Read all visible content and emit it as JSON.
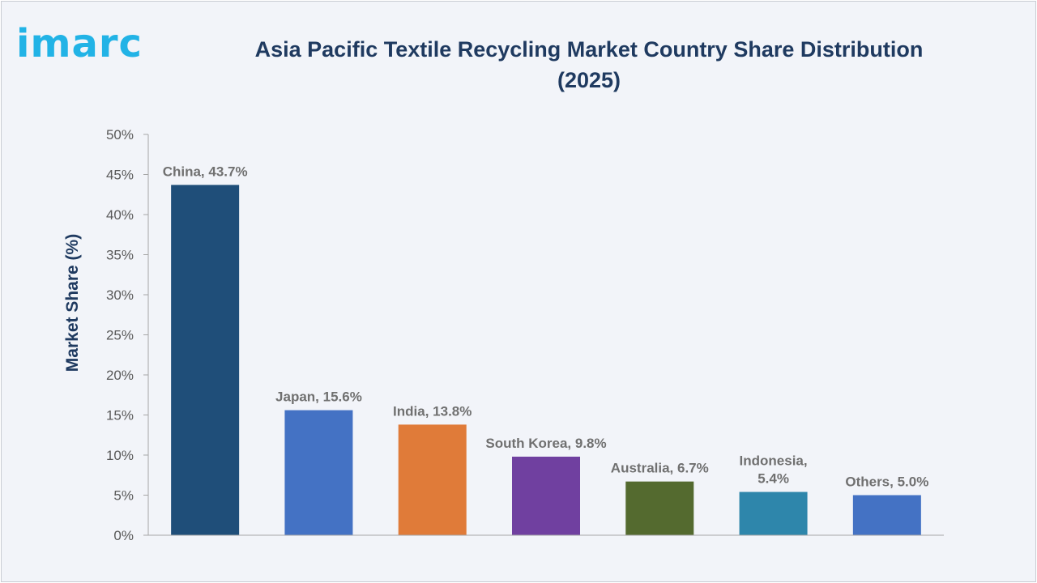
{
  "logo_text": "imarc",
  "chart_data": {
    "type": "bar",
    "title": "Asia Pacific Textile Recycling Market Country Share Distribution (2025)",
    "xlabel": "",
    "ylabel": "Market Share (%)",
    "ylim": [
      0,
      50
    ],
    "yticks": [
      0,
      5,
      10,
      15,
      20,
      25,
      30,
      35,
      40,
      45,
      50
    ],
    "ytick_suffix": "%",
    "categories": [
      "China",
      "Japan",
      "India",
      "South Korea",
      "Australia",
      "Indonesia",
      "Others"
    ],
    "values": [
      43.7,
      15.6,
      13.8,
      9.8,
      6.7,
      5.4,
      5.0
    ],
    "data_labels": [
      [
        "China, 43.7%"
      ],
      [
        "Japan, 15.6%"
      ],
      [
        "India, 13.8%"
      ],
      [
        "South Korea, 9.8%"
      ],
      [
        "Australia, 6.7%"
      ],
      [
        "Indonesia,",
        "5.4%"
      ],
      [
        "Others, 5.0%"
      ]
    ],
    "colors": [
      "#1f4e79",
      "#4472c4",
      "#e07b39",
      "#7040a0",
      "#546a2f",
      "#2e86ab",
      "#4472c4"
    ],
    "grid": false,
    "legend": "none"
  }
}
